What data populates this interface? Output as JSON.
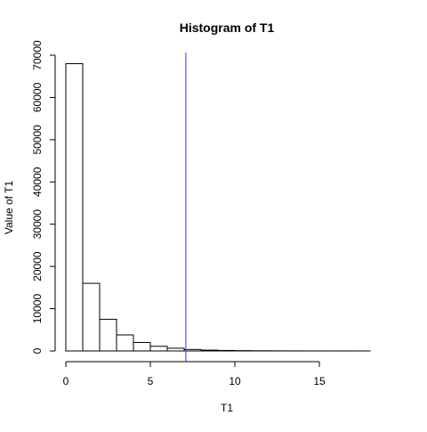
{
  "chart_data": {
    "type": "bar",
    "title": "Histogram of T1",
    "xlabel": "T1",
    "ylabel": "Value of T1",
    "xlim": [
      0,
      19
    ],
    "ylim": [
      0,
      70000
    ],
    "bin_width": 1,
    "bins": [
      {
        "x0": 0,
        "x1": 1,
        "count": 68000
      },
      {
        "x0": 1,
        "x1": 2,
        "count": 16000
      },
      {
        "x0": 2,
        "x1": 3,
        "count": 7500
      },
      {
        "x0": 3,
        "x1": 4,
        "count": 3800
      },
      {
        "x0": 4,
        "x1": 5,
        "count": 2000
      },
      {
        "x0": 5,
        "x1": 6,
        "count": 1100
      },
      {
        "x0": 6,
        "x1": 7,
        "count": 650
      },
      {
        "x0": 7,
        "x1": 8,
        "count": 350
      },
      {
        "x0": 8,
        "x1": 9,
        "count": 200
      },
      {
        "x0": 9,
        "x1": 10,
        "count": 120
      },
      {
        "x0": 10,
        "x1": 11,
        "count": 70
      },
      {
        "x0": 11,
        "x1": 12,
        "count": 40
      },
      {
        "x0": 12,
        "x1": 13,
        "count": 25
      },
      {
        "x0": 13,
        "x1": 14,
        "count": 15
      },
      {
        "x0": 14,
        "x1": 15,
        "count": 10
      },
      {
        "x0": 15,
        "x1": 16,
        "count": 6
      },
      {
        "x0": 16,
        "x1": 17,
        "count": 4
      },
      {
        "x0": 17,
        "x1": 18,
        "count": 2
      },
      {
        "x0": 18,
        "x1": 19,
        "count": 1
      }
    ],
    "x_ticks": [
      "0",
      "5",
      "10",
      "15"
    ],
    "y_ticks": [
      "0",
      "10000",
      "20000",
      "30000",
      "40000",
      "50000",
      "60000",
      "70000"
    ],
    "vline": {
      "x": 7.1,
      "color": "#3333ff"
    },
    "bar_fill": "#ffffff",
    "bar_stroke": "#000000",
    "grid": false
  }
}
